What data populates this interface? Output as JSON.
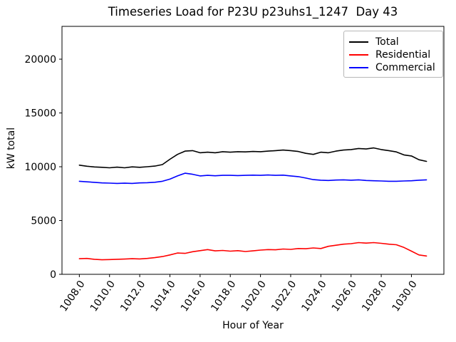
{
  "chart_data": {
    "type": "line",
    "title": "Timeseries Load for P23U p23uhs1_1247  Day 43",
    "xlabel": "Hour of Year",
    "ylabel": "kW total",
    "xlim": [
      1006.85,
      1032.15
    ],
    "ylim": [
      0,
      23050
    ],
    "grid": false,
    "legend": {
      "position": "upper right"
    },
    "xticks": {
      "values": [
        1008,
        1010,
        1012,
        1014,
        1016,
        1018,
        1020,
        1022,
        1024,
        1026,
        1028,
        1030
      ],
      "labels": [
        "1008.0",
        "1010.0",
        "1012.0",
        "1014.0",
        "1016.0",
        "1018.0",
        "1020.0",
        "1022.0",
        "1024.0",
        "1026.0",
        "1028.0",
        "1030.0"
      ]
    },
    "yticks": {
      "values": [
        0,
        5000,
        10000,
        15000,
        20000
      ],
      "labels": [
        "0",
        "5000",
        "10000",
        "15000",
        "20000"
      ]
    },
    "x": [
      1008.0,
      1008.5,
      1009.0,
      1009.5,
      1010.0,
      1010.5,
      1011.0,
      1011.5,
      1012.0,
      1012.5,
      1013.0,
      1013.5,
      1014.0,
      1014.5,
      1015.0,
      1015.5,
      1016.0,
      1016.5,
      1017.0,
      1017.5,
      1018.0,
      1018.5,
      1019.0,
      1019.5,
      1020.0,
      1020.5,
      1021.0,
      1021.5,
      1022.0,
      1022.5,
      1023.0,
      1023.5,
      1024.0,
      1024.5,
      1025.0,
      1025.5,
      1026.0,
      1026.5,
      1027.0,
      1027.5,
      1028.0,
      1028.5,
      1029.0,
      1029.5,
      1030.0,
      1030.5,
      1031.0
    ],
    "series": [
      {
        "name": "Total",
        "color": "#000000",
        "values": [
          10150,
          10050,
          9980,
          9950,
          9900,
          9960,
          9900,
          9990,
          9950,
          10000,
          10060,
          10200,
          10700,
          11150,
          11450,
          11500,
          11300,
          11350,
          11300,
          11400,
          11350,
          11400,
          11380,
          11420,
          11400,
          11450,
          11500,
          11550,
          11500,
          11420,
          11250,
          11150,
          11350,
          11300,
          11450,
          11550,
          11600,
          11700,
          11650,
          11750,
          11600,
          11500,
          11380,
          11100,
          11000,
          10650,
          10500
        ]
      },
      {
        "name": "Residential",
        "color": "#ff0000",
        "values": [
          1450,
          1480,
          1400,
          1350,
          1370,
          1400,
          1420,
          1450,
          1430,
          1480,
          1550,
          1650,
          1800,
          1980,
          1950,
          2100,
          2200,
          2300,
          2180,
          2220,
          2150,
          2200,
          2120,
          2180,
          2250,
          2300,
          2280,
          2350,
          2320,
          2400,
          2380,
          2450,
          2400,
          2600,
          2700,
          2800,
          2850,
          2950,
          2900,
          2950,
          2880,
          2800,
          2750,
          2500,
          2150,
          1800,
          1700
        ]
      },
      {
        "name": "Commercial",
        "color": "#0000ff",
        "values": [
          8650,
          8600,
          8550,
          8500,
          8480,
          8450,
          8470,
          8450,
          8500,
          8520,
          8560,
          8650,
          8850,
          9150,
          9400,
          9300,
          9150,
          9200,
          9160,
          9200,
          9200,
          9180,
          9200,
          9220,
          9200,
          9230,
          9200,
          9220,
          9150,
          9080,
          8950,
          8800,
          8750,
          8720,
          8760,
          8780,
          8750,
          8780,
          8720,
          8700,
          8680,
          8650,
          8650,
          8680,
          8700,
          8750,
          8780
        ]
      }
    ]
  }
}
